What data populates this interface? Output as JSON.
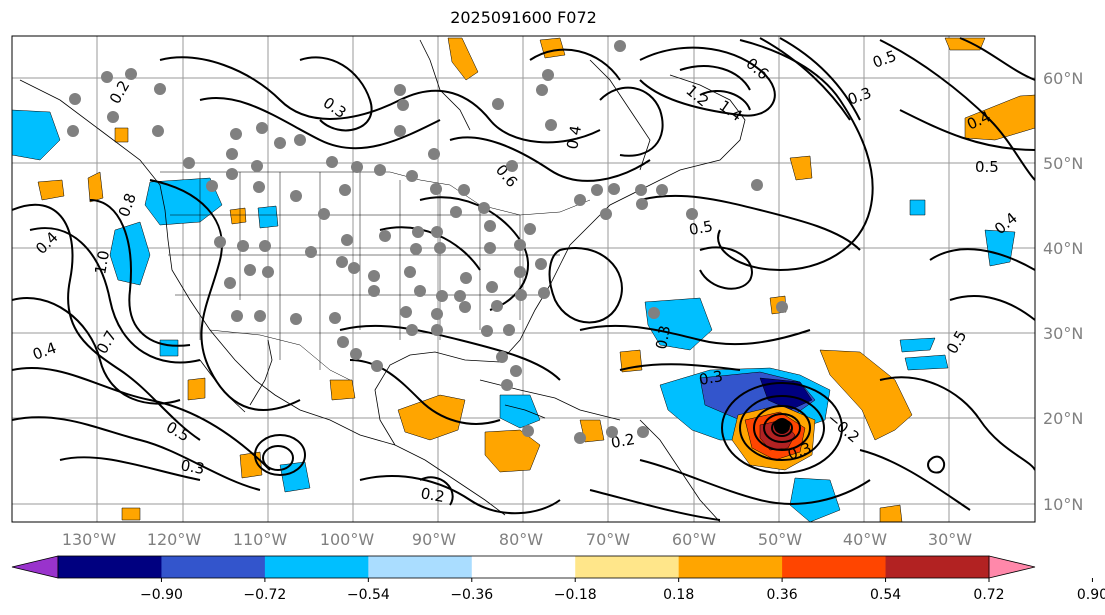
{
  "title": "2025091600 F072",
  "map": {
    "longitude_labels": [
      "130°W",
      "120°W",
      "110°W",
      "100°W",
      "90°W",
      "80°W",
      "70°W",
      "60°W",
      "50°W",
      "40°W",
      "30°W"
    ],
    "latitude_labels": [
      "60°N",
      "50°N",
      "40°N",
      "30°N",
      "20°N",
      "10°N"
    ],
    "contour_labels": [
      "0.2",
      "0.3",
      "0.4",
      "0.5",
      "0.6",
      "0.7",
      "0.8",
      "1.0",
      "1.2",
      "1.4",
      "−0.2",
      "0.5",
      "0.3",
      "0.4"
    ]
  },
  "colorbar": {
    "ticks": [
      "−0.90",
      "−0.72",
      "−0.54",
      "−0.36",
      "−0.18",
      "0.18",
      "0.36",
      "0.54",
      "0.72",
      "0.90"
    ],
    "colors": [
      "#9933cc",
      "#000080",
      "#3355cc",
      "#00bfff",
      "#aaddff",
      "#ffffff",
      "#ffe68a",
      "#ffa500",
      "#ff4500",
      "#b22222",
      "#ff88aa"
    ]
  }
}
